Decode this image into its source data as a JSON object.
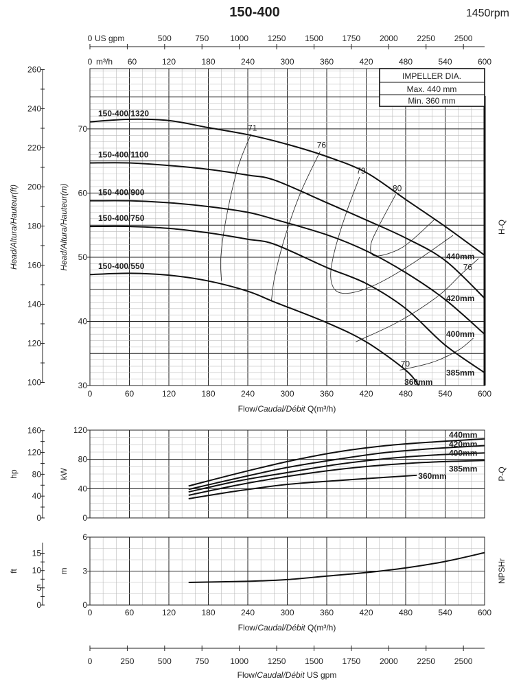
{
  "header": {
    "title": "150-400",
    "speed": "1450rpm"
  },
  "impeller_box": {
    "title": "IMPELLER DIA.",
    "max": "Max. 440 mm",
    "min": "Min. 360 mm"
  },
  "flow_axis": {
    "m3h_ticks": [
      "0",
      "60",
      "120",
      "180",
      "240",
      "300",
      "360",
      "420",
      "480",
      "540",
      "600"
    ],
    "m3h_unit": "m³/h",
    "gpm_unit": "US gpm",
    "gpm_ticks": [
      0,
      250,
      500,
      750,
      1000,
      1250,
      1500,
      1750,
      2000,
      2250,
      2500
    ],
    "gpm_labels": [
      "0",
      "250",
      "500",
      "750",
      "1000",
      "1250",
      "1500",
      "1750",
      "2000",
      "2250",
      "2500"
    ],
    "gpm_per_m3h": 4.403,
    "xlabel_parts": [
      "Flow/",
      "Caudal/Débit",
      " Q(m³/h)"
    ],
    "gpm_xlabel_parts": [
      "Flow/",
      "Caudal/Débit",
      "  US gpm"
    ]
  },
  "chart_data": [
    {
      "id": "hq",
      "type": "line",
      "side_label": "H-Q",
      "xlim": [
        0,
        600
      ],
      "ylim": [
        30,
        79.4
      ],
      "yticks": [
        "30",
        "40",
        "50",
        "60",
        "70"
      ],
      "ylabel": "Head/Altura/Hauteur(m)",
      "y2label": "Head/Altura/Hauteur(ft)",
      "y2ticks": [
        "100",
        "120",
        "140",
        "160",
        "180",
        "200",
        "220",
        "240",
        "260"
      ],
      "grid": true,
      "series": [
        {
          "name": "150-400/1320",
          "diameter": "440mm",
          "points": [
            [
              0,
              71.1
            ],
            [
              60,
              71.5
            ],
            [
              120,
              71.3
            ],
            [
              180,
              70.2
            ],
            [
              240,
              69.1
            ],
            [
              300,
              67.6
            ],
            [
              360,
              65.7
            ],
            [
              420,
              63.2
            ],
            [
              480,
              59
            ],
            [
              540,
              54.8
            ],
            [
              600,
              50.3
            ]
          ]
        },
        {
          "name": "150-400/1100",
          "diameter": "420mm",
          "points": [
            [
              0,
              64.7
            ],
            [
              60,
              64.7
            ],
            [
              120,
              64.3
            ],
            [
              180,
              63.7
            ],
            [
              240,
              62.8
            ],
            [
              281,
              62
            ],
            [
              360,
              58.5
            ],
            [
              420,
              55.8
            ],
            [
              480,
              53
            ],
            [
              540,
              49.5
            ],
            [
              600,
              43.6
            ]
          ]
        },
        {
          "name": "150-400/900",
          "diameter": "400mm",
          "points": [
            [
              0,
              58.8
            ],
            [
              60,
              58.8
            ],
            [
              120,
              58.5
            ],
            [
              180,
              57.9
            ],
            [
              240,
              57
            ],
            [
              281,
              55.9
            ],
            [
              360,
              53.5
            ],
            [
              420,
              51
            ],
            [
              480,
              47.6
            ],
            [
              540,
              43.4
            ],
            [
              600,
              38
            ]
          ]
        },
        {
          "name": "150-400/750",
          "diameter": "385mm",
          "points": [
            [
              0,
              54.8
            ],
            [
              60,
              54.8
            ],
            [
              120,
              54.5
            ],
            [
              180,
              53.8
            ],
            [
              240,
              52.8
            ],
            [
              281,
              52
            ],
            [
              360,
              48.4
            ],
            [
              420,
              45.9
            ],
            [
              480,
              42
            ],
            [
              540,
              36.3
            ],
            [
              600,
              32
            ]
          ]
        },
        {
          "name": "150-400/550",
          "diameter": "360mm",
          "points": [
            [
              0,
              47.3
            ],
            [
              60,
              47.5
            ],
            [
              120,
              47.2
            ],
            [
              180,
              46.3
            ],
            [
              240,
              44.7
            ],
            [
              281,
              43
            ],
            [
              360,
              39.8
            ],
            [
              420,
              36.8
            ],
            [
              480,
              32.4
            ],
            [
              500,
              30
            ]
          ]
        }
      ],
      "efficiency_contours": [
        {
          "label": "71",
          "points": [
            [
              245,
              69.2
            ],
            [
              225,
              64
            ],
            [
              207,
              56
            ],
            [
              199,
              50
            ],
            [
              200,
              46.3
            ]
          ]
        },
        {
          "label": "76",
          "points": [
            [
              350,
              66.5
            ],
            [
              320,
              60
            ],
            [
              296,
              53
            ],
            [
              281,
              47
            ],
            [
              276,
              43.3
            ]
          ]
        },
        {
          "label": "79",
          "points": [
            [
              410,
              62.5
            ],
            [
              390,
              57
            ],
            [
              372,
              51
            ],
            [
              366,
              47
            ],
            [
              375,
              44.7
            ],
            [
              400,
              44.5
            ],
            [
              440,
              46
            ],
            [
              490,
              49
            ],
            [
              552,
              53.4
            ]
          ]
        },
        {
          "label": "80",
          "points": [
            [
              465,
              59.8
            ],
            [
              440,
              55
            ],
            [
              427,
              51.9
            ],
            [
              434,
              50.2
            ],
            [
              476,
              51.6
            ],
            [
              524,
              55.9
            ]
          ]
        },
        {
          "label": "76",
          "points": [
            [
              404,
              36.8
            ],
            [
              470,
              40
            ],
            [
              530,
              44
            ],
            [
              566,
              47.5
            ],
            [
              591,
              49.8
            ]
          ]
        },
        {
          "label": "70",
          "points": [
            [
              471,
              32.4
            ],
            [
              520,
              33.6
            ],
            [
              560,
              35.5
            ],
            [
              583,
              37.4
            ]
          ]
        }
      ]
    },
    {
      "id": "pq",
      "type": "line",
      "side_label": "P-Q",
      "xlim": [
        0,
        600
      ],
      "ylim": [
        0,
        120
      ],
      "yticks": [
        "0",
        "40",
        "80",
        "120"
      ],
      "ylabel": "kW",
      "y2label": "hp",
      "y2ticks": [
        "0",
        "40",
        "80",
        "120",
        "160"
      ],
      "grid": true,
      "series": [
        {
          "diameter": "440mm",
          "points": [
            [
              150,
              43.6
            ],
            [
              225,
              61
            ],
            [
              300,
              77
            ],
            [
              375,
              90
            ],
            [
              450,
              98.8
            ],
            [
              525,
              104
            ],
            [
              600,
              108
            ]
          ]
        },
        {
          "diameter": "420mm",
          "points": [
            [
              150,
              39
            ],
            [
              225,
              54.5
            ],
            [
              300,
              69
            ],
            [
              375,
              80
            ],
            [
              450,
              89.4
            ],
            [
              525,
              95
            ],
            [
              600,
              98.8
            ]
          ]
        },
        {
          "diameter": "400mm",
          "points": [
            [
              150,
              35.5
            ],
            [
              225,
              50.5
            ],
            [
              300,
              62
            ],
            [
              375,
              73
            ],
            [
              450,
              81
            ],
            [
              525,
              86
            ],
            [
              600,
              88.8
            ]
          ]
        },
        {
          "diameter": "385mm",
          "points": [
            [
              150,
              31
            ],
            [
              225,
              45
            ],
            [
              300,
              56.7
            ],
            [
              375,
              66
            ],
            [
              450,
              72.5
            ],
            [
              525,
              76.5
            ],
            [
              600,
              78.5
            ]
          ]
        },
        {
          "diameter": "360mm",
          "points": [
            [
              150,
              26.2
            ],
            [
              225,
              37
            ],
            [
              300,
              45.8
            ],
            [
              375,
              51
            ],
            [
              450,
              55.5
            ],
            [
              497,
              58.3
            ]
          ]
        }
      ]
    },
    {
      "id": "npsh",
      "type": "line",
      "side_label": "NPSHr",
      "xlim": [
        0,
        600
      ],
      "ylim": [
        0,
        6
      ],
      "yticks": [
        "0",
        "3",
        "6"
      ],
      "ylabel": "m",
      "y2label": "ft",
      "y2ticks": [
        "0",
        "5",
        "10",
        "15"
      ],
      "grid": true,
      "series": [
        {
          "points": [
            [
              150,
              2.0
            ],
            [
              240,
              2.1
            ],
            [
              300,
              2.25
            ],
            [
              360,
              2.56
            ],
            [
              420,
              2.87
            ],
            [
              480,
              3.28
            ],
            [
              540,
              3.85
            ],
            [
              600,
              4.63
            ]
          ]
        }
      ]
    }
  ]
}
